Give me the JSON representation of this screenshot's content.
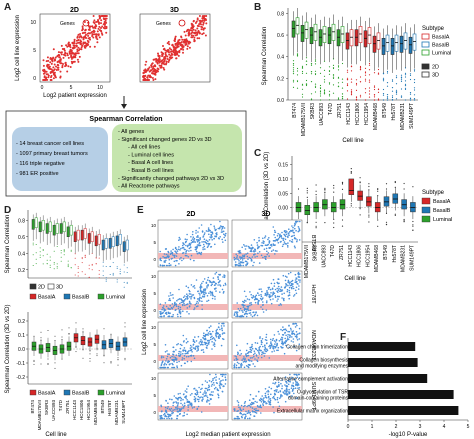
{
  "panel_letters": {
    "A": "A",
    "B": "B",
    "C": "C",
    "D": "D",
    "E": "E",
    "F": "F"
  },
  "colors": {
    "basalA": "#d62728",
    "basalB": "#1f77b4",
    "luminal": "#2ca02c",
    "scatter_red": "#e03030",
    "scatter_blue": "#4a90d9",
    "band_pink": "#f2b7b7",
    "box_blue": "#b8d3ea",
    "box_green": "#c7e3b8",
    "bar_black": "#111111"
  },
  "panel_a": {
    "title_2d": "2D",
    "title_3d": "3D",
    "genes_label": "Genes",
    "ylabel": "Log2 cell line expression",
    "xlabel": "Log2 patient expression",
    "y_ticks": [
      "10",
      "5",
      "0"
    ],
    "x_ticks": [
      "0",
      "5",
      "10"
    ],
    "spearman_title": "Spearman Correlation",
    "left_box": [
      "- 14 breast cancer cell lines",
      "- 1097 primary breast tumors",
      "- 116 triple negative",
      "- 981 ER positive"
    ],
    "right_box": [
      "- All genes",
      "- Significant changed genes 2D vs 3D",
      "- All cell lines",
      "- Luminal cell lines",
      "- Basal A cell lines",
      "- Basal B cell lines",
      "- Significantly changed pathways 2D vs 3D",
      "- All Reactome pathways"
    ]
  },
  "panel_b": {
    "ylabel": "Spearman Correlation",
    "xlabel": "Cell line",
    "y_ticks": [
      "0.8",
      "0.6",
      "0.4",
      "0.2",
      "0.0"
    ],
    "legend_subtype_title": "Subtype",
    "legend_subtypes": [
      "BasalA",
      "BasalB",
      "Luminal"
    ],
    "legend_dims": [
      "2D",
      "3D"
    ],
    "cell_lines": [
      "BT474",
      "MDAMB175VII",
      "SKBR3",
      "UACC893",
      "T47D",
      "ZR751",
      "HCC1143",
      "HCC1806",
      "HCC1954",
      "MDAMB468",
      "BT549",
      "Hs578T",
      "MDAMB231",
      "SUM149PT"
    ]
  },
  "panel_c": {
    "ylabel": "Delta Spearman Correlation (3D vs 2D)",
    "xlabel": "Cell line",
    "y_ticks": [
      "0.15",
      "0.10",
      "0.05",
      "0.00",
      "-0.05",
      "-0.10"
    ],
    "legend_title": "Subtype",
    "legend": [
      "BasalA",
      "BasalB",
      "Luminal"
    ],
    "cell_lines": [
      "BT474",
      "MDAMB175VII",
      "SKBR3",
      "UACC893",
      "T47D",
      "ZR751",
      "HCC1143",
      "HCC1806",
      "HCC1954",
      "MDAMB468",
      "BT549",
      "Hs578T",
      "MDAMB231",
      "SUM149PT"
    ]
  },
  "panel_d": {
    "ylabel_top": "Spearman Correlation",
    "ylabel_bottom": "Spearman Correlation (3D vs 2D)",
    "xlabel": "Cell line",
    "y_ticks_top": [
      "0.8",
      "0.6",
      "0.4",
      "0.2"
    ],
    "y_ticks_bottom": [
      "0.2",
      "0.1",
      "0.0",
      "-0.1",
      "-0.2"
    ],
    "legend_dims": [
      "2D",
      "3D"
    ],
    "legend_subtypes": [
      "BasalA",
      "BasalB",
      "Luminal"
    ],
    "cell_lines": [
      "BT474",
      "MDAMB175VII",
      "SKBR3",
      "UACC893",
      "T47D",
      "ZR751",
      "HCC1143",
      "HCC1806",
      "HCC1954",
      "MDAMB468",
      "BT549",
      "Hs578T",
      "MDAMB231",
      "SUM149PT"
    ]
  },
  "panel_e": {
    "title_2d": "2D",
    "title_3d": "3D",
    "ylabel": "Log2 cell line expression",
    "xlabel": "Log2 median patient expression",
    "rows": [
      "BT549",
      "Hs578T",
      "MDAMB231",
      "SUM149PT"
    ],
    "y_ticks": [
      "10",
      "5",
      "0"
    ]
  },
  "panel_f": {
    "xlabel": "-log10 P-value",
    "x_ticks": [
      "0",
      "1",
      "2",
      "3",
      "4",
      "5"
    ],
    "chart_data": {
      "type": "bar",
      "categories": [
        "Collagen chain trimerization",
        "Collagen biosynthesis and modifying enzymes",
        "Alternative complement activation",
        "O-glycosylation of TSR domain-containing proteins",
        "Extracellular matrix organization"
      ],
      "cat_lines": [
        [
          "Collagen chain trimerization"
        ],
        [
          "Collagen biosynthesis",
          "and modifying enzymes"
        ],
        [
          "Alternative complement activation"
        ],
        [
          "O-glycosylation of TSR",
          "domain-containing proteins"
        ],
        [
          "Extracellular matrix organization"
        ]
      ],
      "values": [
        2.8,
        2.9,
        3.3,
        4.4,
        4.6
      ],
      "xlim": [
        0,
        5
      ]
    }
  }
}
